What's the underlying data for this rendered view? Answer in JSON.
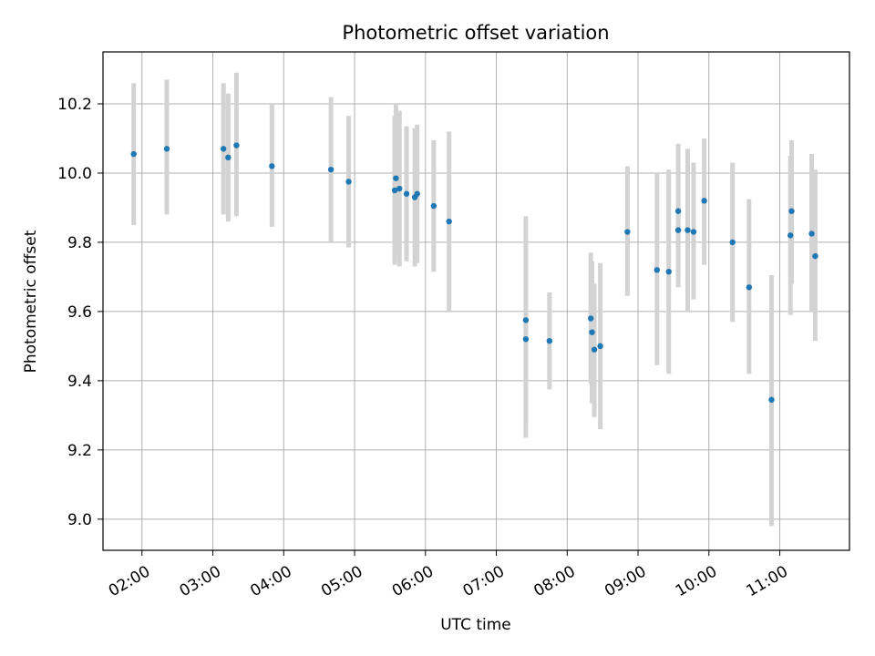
{
  "chart_data": {
    "type": "scatter",
    "title": "Photometric offset variation",
    "xlabel": "UTC time",
    "ylabel": "Photometric offset",
    "x_axis_type": "time",
    "xlim": [
      "01:27",
      "11:59"
    ],
    "ylim": [
      8.91,
      10.35
    ],
    "xticks": [
      "02:00",
      "03:00",
      "04:00",
      "05:00",
      "06:00",
      "07:00",
      "08:00",
      "09:00",
      "10:00",
      "11:00"
    ],
    "yticks": [
      9.0,
      9.2,
      9.4,
      9.6,
      9.8,
      10.0,
      10.2
    ],
    "grid": true,
    "legend": "none",
    "colors": {
      "marker": "#1f77b4",
      "errorbar": "#d3d3d3",
      "grid": "#b0b0b0"
    },
    "points": [
      {
        "t": "01:53",
        "y": 10.055,
        "lo": 9.85,
        "hi": 10.26
      },
      {
        "t": "02:21",
        "y": 10.07,
        "lo": 9.88,
        "hi": 10.27
      },
      {
        "t": "03:09",
        "y": 10.07,
        "lo": 9.88,
        "hi": 10.26
      },
      {
        "t": "03:13",
        "y": 10.045,
        "lo": 9.86,
        "hi": 10.23
      },
      {
        "t": "03:20",
        "y": 10.08,
        "lo": 9.875,
        "hi": 10.29
      },
      {
        "t": "03:50",
        "y": 10.02,
        "lo": 9.845,
        "hi": 10.2
      },
      {
        "t": "04:40",
        "y": 10.01,
        "lo": 9.8,
        "hi": 10.22
      },
      {
        "t": "04:55",
        "y": 9.975,
        "lo": 9.785,
        "hi": 10.165
      },
      {
        "t": "05:34",
        "y": 9.95,
        "lo": 9.735,
        "hi": 10.165
      },
      {
        "t": "05:35",
        "y": 9.985,
        "lo": 9.76,
        "hi": 10.2
      },
      {
        "t": "05:38",
        "y": 9.955,
        "lo": 9.73,
        "hi": 10.18
      },
      {
        "t": "05:44",
        "y": 9.94,
        "lo": 9.745,
        "hi": 10.135
      },
      {
        "t": "05:51",
        "y": 9.93,
        "lo": 9.73,
        "hi": 10.13
      },
      {
        "t": "05:53",
        "y": 9.94,
        "lo": 9.74,
        "hi": 10.14
      },
      {
        "t": "06:07",
        "y": 9.905,
        "lo": 9.715,
        "hi": 10.095
      },
      {
        "t": "06:20",
        "y": 9.86,
        "lo": 9.6,
        "hi": 10.12
      },
      {
        "t": "07:25",
        "y": 9.575,
        "lo": 9.27,
        "hi": 9.875
      },
      {
        "t": "07:25",
        "y": 9.52,
        "lo": 9.235,
        "hi": 9.805
      },
      {
        "t": "07:45",
        "y": 9.515,
        "lo": 9.375,
        "hi": 9.655
      },
      {
        "t": "08:20",
        "y": 9.58,
        "lo": 9.39,
        "hi": 9.77
      },
      {
        "t": "08:21",
        "y": 9.54,
        "lo": 9.335,
        "hi": 9.745
      },
      {
        "t": "08:23",
        "y": 9.49,
        "lo": 9.295,
        "hi": 9.68
      },
      {
        "t": "08:28",
        "y": 9.5,
        "lo": 9.26,
        "hi": 9.74
      },
      {
        "t": "08:51",
        "y": 9.83,
        "lo": 9.645,
        "hi": 10.02
      },
      {
        "t": "09:16",
        "y": 9.72,
        "lo": 9.445,
        "hi": 10.0
      },
      {
        "t": "09:26",
        "y": 9.715,
        "lo": 9.42,
        "hi": 10.01
      },
      {
        "t": "09:34",
        "y": 9.89,
        "lo": 9.695,
        "hi": 10.085
      },
      {
        "t": "09:34",
        "y": 9.835,
        "lo": 9.67,
        "hi": 10.0
      },
      {
        "t": "09:42",
        "y": 9.835,
        "lo": 9.6,
        "hi": 10.07
      },
      {
        "t": "09:47",
        "y": 9.83,
        "lo": 9.635,
        "hi": 10.03
      },
      {
        "t": "09:56",
        "y": 9.92,
        "lo": 9.735,
        "hi": 10.1
      },
      {
        "t": "10:20",
        "y": 9.8,
        "lo": 9.57,
        "hi": 10.03
      },
      {
        "t": "10:34",
        "y": 9.67,
        "lo": 9.42,
        "hi": 9.925
      },
      {
        "t": "10:53",
        "y": 9.345,
        "lo": 8.98,
        "hi": 9.705
      },
      {
        "t": "11:09",
        "y": 9.82,
        "lo": 9.59,
        "hi": 10.05
      },
      {
        "t": "11:10",
        "y": 9.89,
        "lo": 9.68,
        "hi": 10.095
      },
      {
        "t": "11:27",
        "y": 9.825,
        "lo": 9.6,
        "hi": 10.055
      },
      {
        "t": "11:30",
        "y": 9.76,
        "lo": 9.515,
        "hi": 10.01
      }
    ]
  }
}
